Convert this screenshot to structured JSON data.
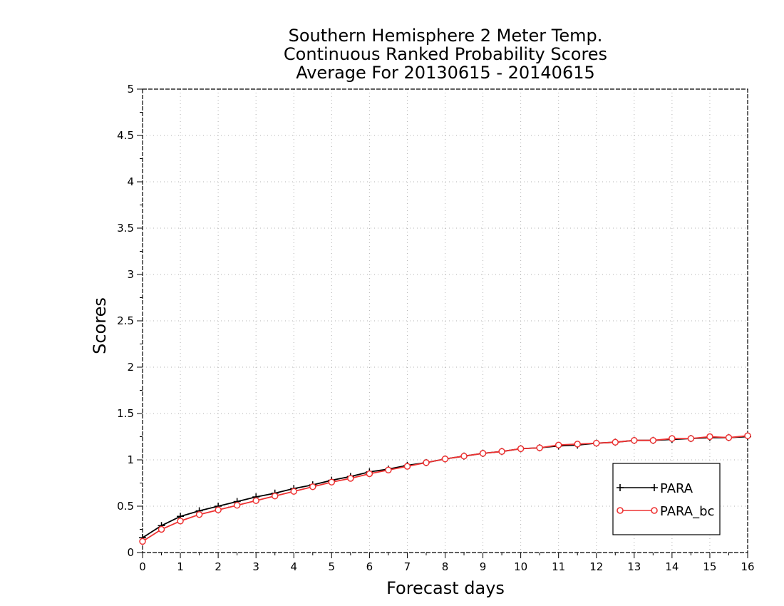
{
  "chart_data": {
    "type": "line",
    "title": [
      "Southern Hemisphere 2 Meter Temp.",
      "Continuous Ranked Probability Scores",
      "Average For 20130615 - 20140615"
    ],
    "xlabel": "Forecast days",
    "ylabel": "Scores",
    "xlim": [
      0,
      16
    ],
    "ylim": [
      0,
      5
    ],
    "xticks": [
      0,
      1,
      2,
      3,
      4,
      5,
      6,
      7,
      8,
      9,
      10,
      11,
      12,
      13,
      14,
      15,
      16
    ],
    "yticks": [
      0,
      0.5,
      1,
      1.5,
      2,
      2.5,
      3,
      3.5,
      4,
      4.5,
      5
    ],
    "grid": true,
    "legend_position": "bottom-right",
    "x": [
      0,
      0.5,
      1,
      1.5,
      2,
      2.5,
      3,
      3.5,
      4,
      4.5,
      5,
      5.5,
      6,
      6.5,
      7,
      7.5,
      8,
      8.5,
      9,
      9.5,
      10,
      10.5,
      11,
      11.5,
      12,
      12.5,
      13,
      13.5,
      14,
      14.5,
      15,
      15.5,
      16
    ],
    "series": [
      {
        "name": "PARA",
        "color": "#000000",
        "marker": "plus",
        "values": [
          0.16,
          0.29,
          0.39,
          0.45,
          0.5,
          0.55,
          0.6,
          0.64,
          0.69,
          0.73,
          0.78,
          0.82,
          0.87,
          0.9,
          0.94,
          0.97,
          1.01,
          1.04,
          1.07,
          1.09,
          1.12,
          1.13,
          1.15,
          1.16,
          1.18,
          1.19,
          1.21,
          1.21,
          1.22,
          1.23,
          1.24,
          1.24,
          1.25
        ]
      },
      {
        "name": "PARA_bc",
        "color": "#ee3333",
        "marker": "circle",
        "values": [
          0.12,
          0.25,
          0.34,
          0.41,
          0.46,
          0.51,
          0.56,
          0.61,
          0.66,
          0.71,
          0.76,
          0.8,
          0.85,
          0.89,
          0.93,
          0.97,
          1.01,
          1.04,
          1.07,
          1.09,
          1.12,
          1.13,
          1.16,
          1.17,
          1.18,
          1.19,
          1.21,
          1.21,
          1.23,
          1.23,
          1.25,
          1.24,
          1.26
        ]
      }
    ]
  }
}
